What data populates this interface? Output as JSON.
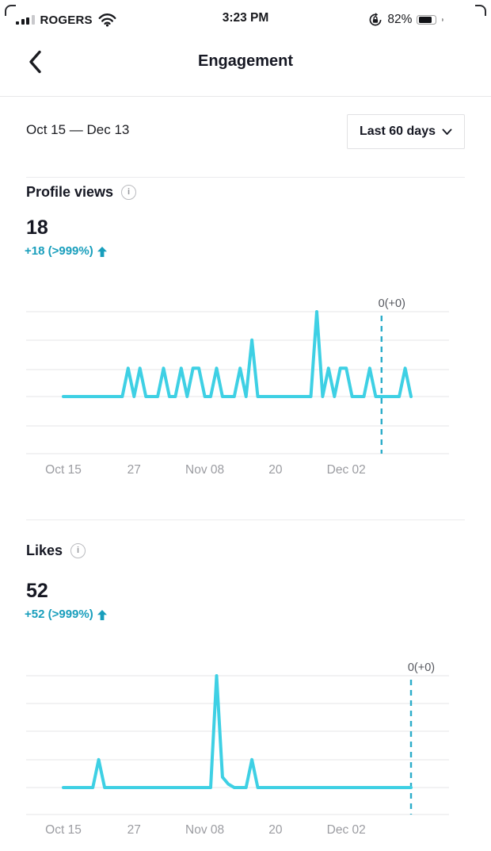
{
  "status_bar": {
    "carrier": "ROGERS",
    "time": "3:23 PM",
    "battery_percent": "82%",
    "battery_level": 0.82,
    "icons": [
      "signal-bars",
      "wifi",
      "orientation-lock",
      "battery"
    ]
  },
  "header": {
    "title": "Engagement"
  },
  "date_range": {
    "label": "Oct 15 — Dec 13",
    "selector_label": "Last 60 days"
  },
  "glyphs": {
    "info": "i"
  },
  "sections": [
    {
      "title": "Profile views",
      "value": "18",
      "delta": "+18 (>999%)",
      "trend": "up"
    },
    {
      "title": "Likes",
      "value": "52",
      "delta": "+52 (>999%)",
      "trend": "up"
    }
  ],
  "colors": {
    "line": "#3ED0E4",
    "dashed": "#2BACC9",
    "delta_text": "#189EBC",
    "grid": "#eaeaec",
    "axis_text": "#9b9ca1",
    "marker_text": "#55575e",
    "main_text": "#161823"
  },
  "chart_data": [
    {
      "type": "line",
      "title": "Profile views",
      "total": 18,
      "x_start": "Oct 15",
      "x_end": "Dec 13",
      "days": 60,
      "tick_labels": [
        {
          "label": "Oct 15",
          "day": 0
        },
        {
          "label": "27",
          "day": 12
        },
        {
          "label": "Nov 08",
          "day": 24
        },
        {
          "label": "20",
          "day": 36
        },
        {
          "label": "Dec 02",
          "day": 48
        }
      ],
      "ylim": [
        0,
        3
      ],
      "grid": true,
      "values": [
        0,
        0,
        0,
        0,
        0,
        0,
        0,
        0,
        0,
        0,
        0,
        1,
        0,
        1,
        0,
        0,
        0,
        1,
        0,
        0,
        1,
        0,
        1,
        1,
        0,
        0,
        1,
        0,
        0,
        0,
        1,
        0,
        2,
        0,
        0,
        0,
        0,
        0,
        0,
        0,
        0,
        0,
        0,
        3,
        0,
        1,
        0,
        1,
        1,
        0,
        0,
        0,
        1,
        0,
        0,
        0,
        0,
        0,
        1,
        0
      ],
      "marker": {
        "day": 54,
        "label": "0(+0)"
      }
    },
    {
      "type": "line",
      "title": "Likes",
      "total": 52,
      "x_start": "Oct 15",
      "x_end": "Dec 13",
      "days": 60,
      "tick_labels": [
        {
          "label": "Oct 15",
          "day": 0
        },
        {
          "label": "27",
          "day": 12
        },
        {
          "label": "Nov 08",
          "day": 24
        },
        {
          "label": "20",
          "day": 36
        },
        {
          "label": "Dec 02",
          "day": 48
        }
      ],
      "ylim": [
        0,
        32
      ],
      "grid": true,
      "values": [
        0,
        0,
        0,
        0,
        0,
        0,
        8,
        0,
        0,
        0,
        0,
        0,
        0,
        0,
        0,
        0,
        0,
        0,
        0,
        0,
        0,
        0,
        0,
        0,
        0,
        0,
        32,
        3,
        1,
        0,
        0,
        0,
        8,
        0,
        0,
        0,
        0,
        0,
        0,
        0,
        0,
        0,
        0,
        0,
        0,
        0,
        0,
        0,
        0,
        0,
        0,
        0,
        0,
        0,
        0,
        0,
        0,
        0,
        0,
        0
      ],
      "marker": {
        "day": 59,
        "label": "0(+0)"
      }
    }
  ]
}
